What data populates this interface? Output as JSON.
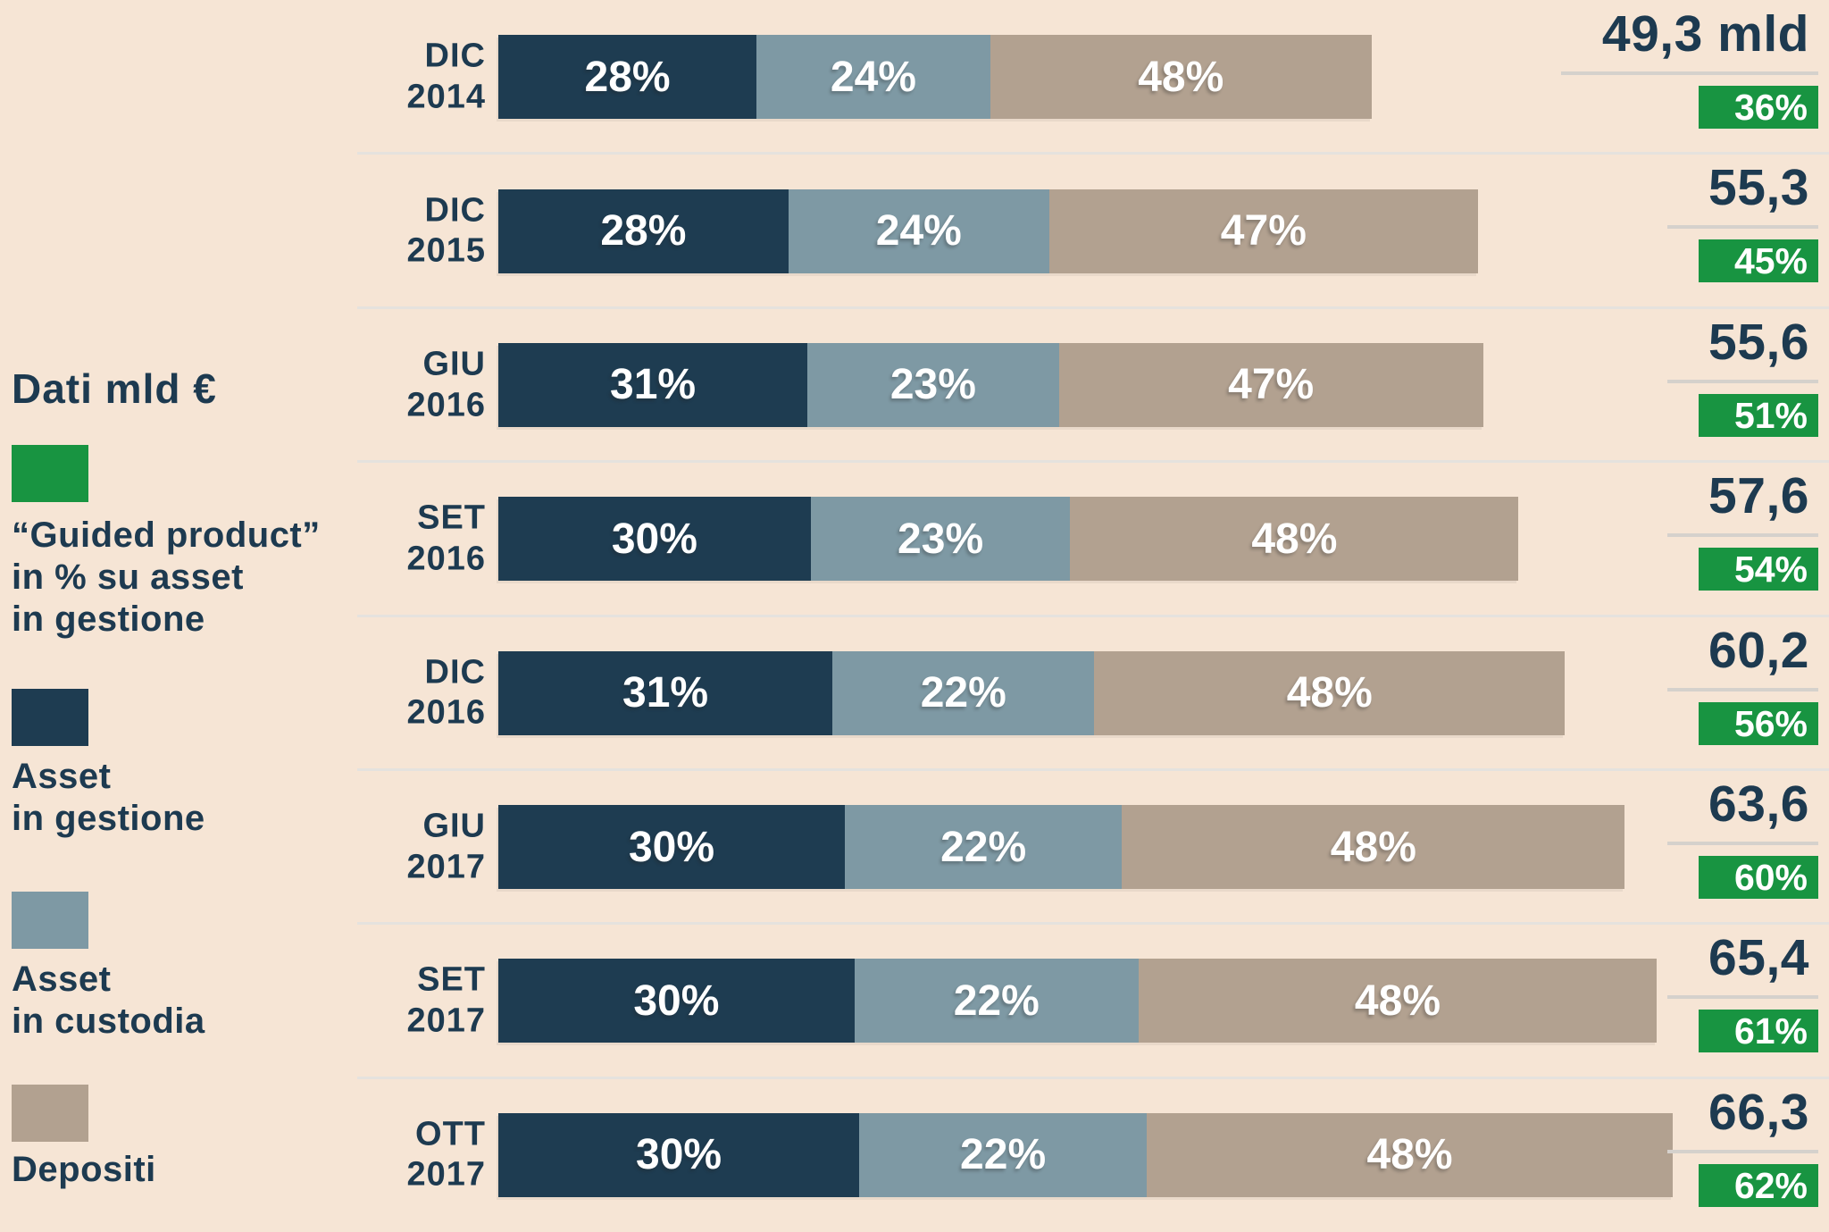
{
  "legend": {
    "title": "Dati mld €",
    "items": [
      {
        "key": "guided",
        "label": "“Guided product”\nin % su asset\nin gestione",
        "color": "#189441"
      },
      {
        "key": "gestione",
        "label": "Asset\nin gestione",
        "color": "#1e3c51"
      },
      {
        "key": "custodia",
        "label": "Asset\nin custodia",
        "color": "#7e99a4"
      },
      {
        "key": "depositi",
        "label": "Depositi",
        "color": "#b2a190"
      }
    ]
  },
  "colors": {
    "background": "#f6e5d5",
    "text": "#1d3a50",
    "separator": "#e5e2de",
    "value_rule": "#d5d1cc",
    "badge_green": "#189441",
    "bar_label": "#ffffff"
  },
  "chart_data": {
    "type": "bar",
    "orientation": "horizontal",
    "stacked": true,
    "title": "Dati mld €",
    "categories": [
      "DIC 2014",
      "DIC 2015",
      "GIU 2016",
      "SET 2016",
      "DIC 2016",
      "GIU 2017",
      "SET 2017",
      "OTT 2017"
    ],
    "series": [
      {
        "name": "Asset in gestione",
        "color": "#1e3c51",
        "unit": "%",
        "values": [
          28,
          28,
          31,
          30,
          31,
          30,
          30,
          30
        ]
      },
      {
        "name": "Asset in custodia",
        "color": "#7e99a4",
        "unit": "%",
        "values": [
          24,
          24,
          23,
          23,
          22,
          22,
          22,
          22
        ]
      },
      {
        "name": "Depositi",
        "color": "#b2a190",
        "unit": "%",
        "values": [
          48,
          47,
          47,
          48,
          48,
          48,
          48,
          48
        ]
      }
    ],
    "totals_mld": [
      49.3,
      55.3,
      55.6,
      57.6,
      60.2,
      63.6,
      65.4,
      66.3
    ],
    "total_labels": [
      "49,3 mld",
      "55,3",
      "55,6",
      "57,6",
      "60,2",
      "63,6",
      "65,4",
      "66,3"
    ],
    "guided_product_pct": [
      36,
      45,
      51,
      54,
      56,
      60,
      61,
      62
    ],
    "guided_product_note": "“Guided product” in % su asset in gestione",
    "xlim": [
      0,
      66.3
    ],
    "grid": false,
    "legend_position": "left"
  }
}
